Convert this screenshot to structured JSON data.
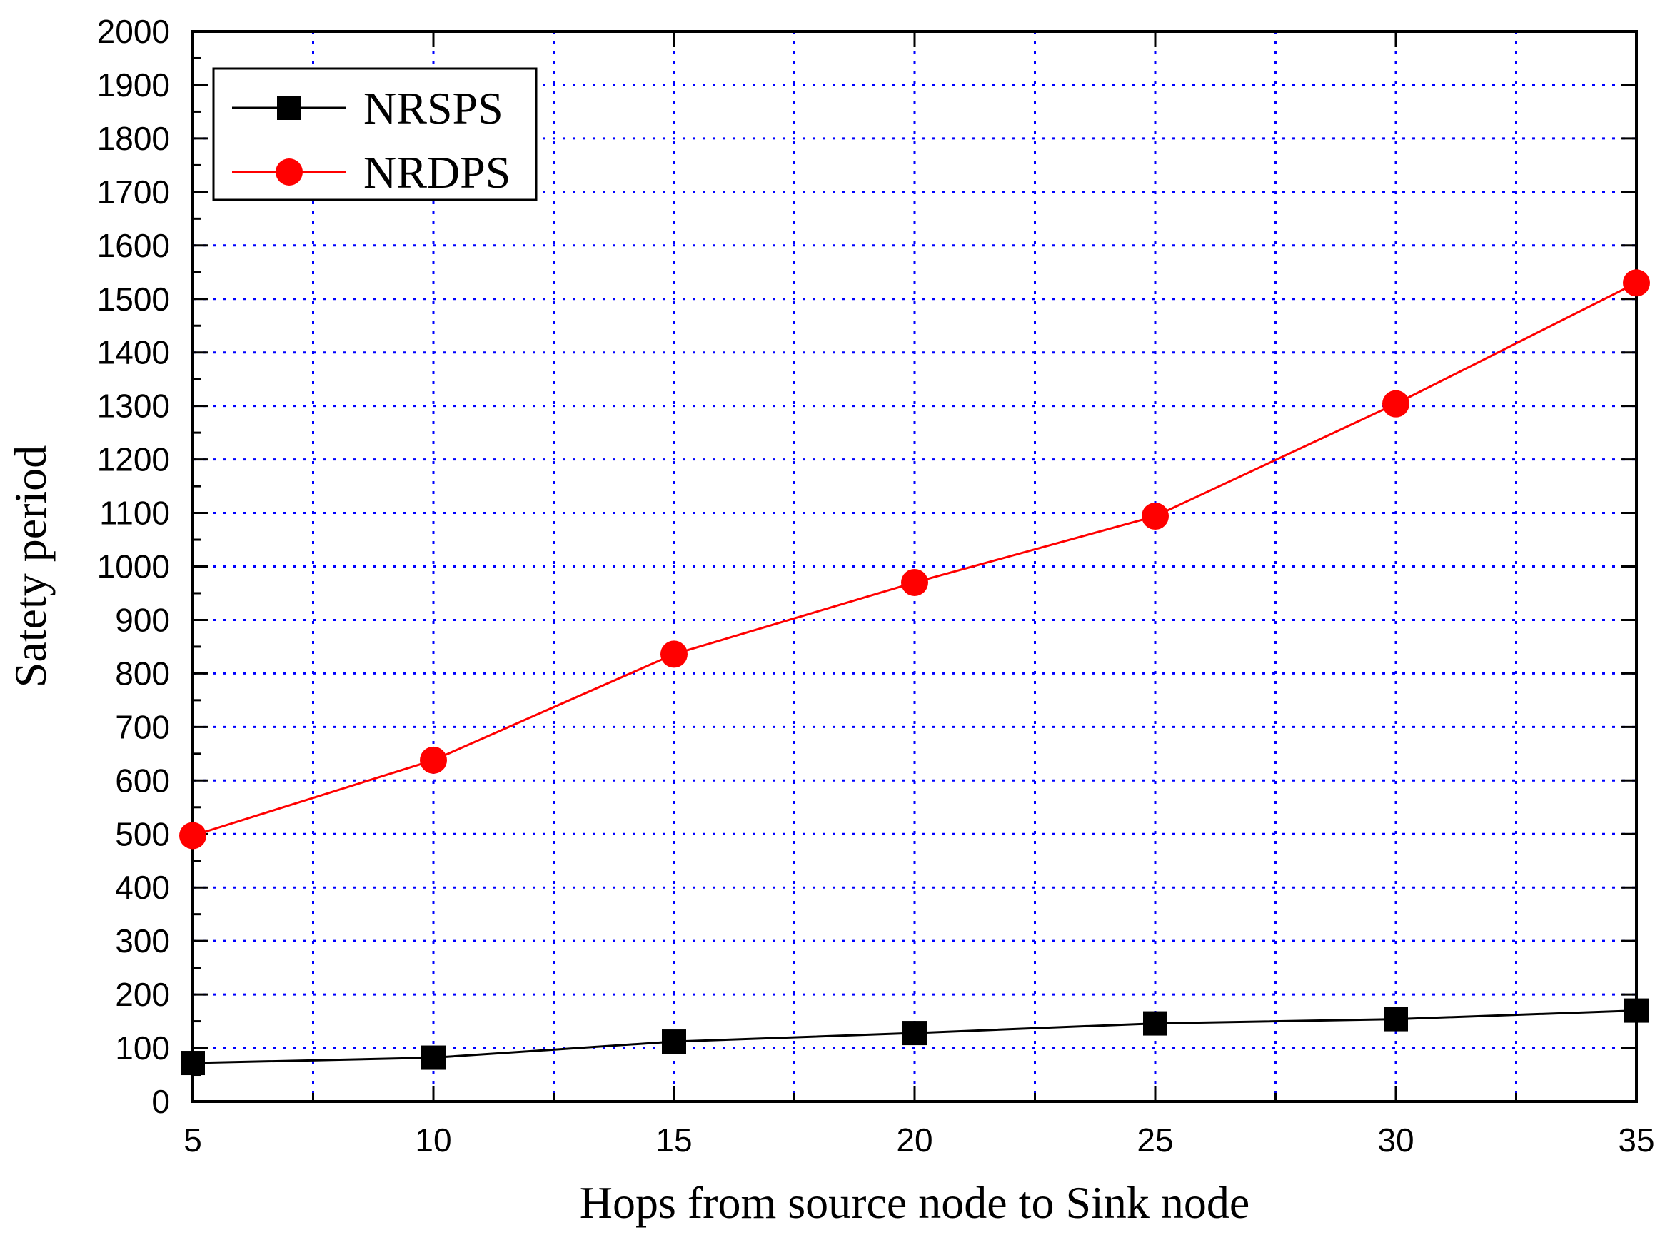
{
  "chart_data": {
    "type": "line",
    "title": "",
    "xlabel": "Hops from source node to Sink node",
    "ylabel": "Satety period",
    "xlim": [
      5,
      35
    ],
    "ylim": [
      0,
      2000
    ],
    "xticks": [
      5,
      10,
      15,
      20,
      25,
      30,
      35
    ],
    "yticks": [
      0,
      100,
      200,
      300,
      400,
      500,
      600,
      700,
      800,
      900,
      1000,
      1100,
      1200,
      1300,
      1400,
      1500,
      1600,
      1700,
      1800,
      1900,
      2000
    ],
    "grid": true,
    "legend_position": "top-left",
    "x": [
      5,
      10,
      15,
      20,
      25,
      30,
      35
    ],
    "series": [
      {
        "name": "NRSPS",
        "values": [
          72,
          82,
          112,
          128,
          146,
          154,
          170
        ],
        "color": "#000000",
        "marker": "square"
      },
      {
        "name": "NRDPS",
        "values": [
          497,
          638,
          836,
          970,
          1094,
          1304,
          1530
        ],
        "color": "#ff0000",
        "marker": "circle"
      }
    ],
    "colors": {
      "grid": "#0000ff",
      "axis": "#000000"
    }
  }
}
